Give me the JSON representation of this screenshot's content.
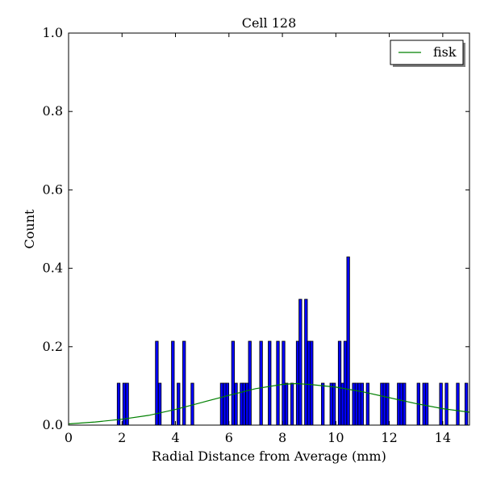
{
  "chart_data": {
    "type": "bar",
    "title": "Cell 128",
    "xlabel": "Radial Distance from Average (mm)",
    "ylabel": "Count",
    "xlim": [
      0,
      15
    ],
    "ylim": [
      0,
      1.0
    ],
    "xticks": [
      0,
      2,
      4,
      6,
      8,
      10,
      12,
      14
    ],
    "yticks": [
      0.0,
      0.2,
      0.4,
      0.6,
      0.8,
      1.0
    ],
    "grid": false,
    "legend_position": "top-right",
    "bin_width": 0.105,
    "bar_color": "#0000ff",
    "bar_edge_color": "#000000",
    "histogram": {
      "bin_left_edges": [
        1.82,
        2.03,
        2.14,
        3.25,
        3.36,
        3.85,
        4.06,
        4.27,
        4.58,
        5.68,
        5.79,
        5.89,
        6.1,
        6.21,
        6.42,
        6.52,
        6.63,
        6.73,
        7.15,
        7.47,
        7.78,
        7.99,
        8.1,
        8.31,
        8.52,
        8.62,
        8.83,
        8.94,
        9.04,
        9.46,
        9.78,
        9.88,
        10.09,
        10.2,
        10.3,
        10.41,
        10.62,
        10.72,
        10.83,
        10.93,
        11.14,
        11.67,
        11.77,
        11.88,
        12.3,
        12.4,
        12.51,
        13.04,
        13.25,
        13.35,
        13.88,
        14.09,
        14.51,
        14.83
      ],
      "heights": [
        0.107,
        0.107,
        0.107,
        0.214,
        0.107,
        0.214,
        0.107,
        0.214,
        0.107,
        0.107,
        0.107,
        0.107,
        0.214,
        0.107,
        0.107,
        0.107,
        0.107,
        0.214,
        0.214,
        0.214,
        0.214,
        0.214,
        0.107,
        0.107,
        0.214,
        0.321,
        0.321,
        0.214,
        0.214,
        0.107,
        0.107,
        0.107,
        0.214,
        0.107,
        0.214,
        0.429,
        0.107,
        0.107,
        0.107,
        0.107,
        0.107,
        0.107,
        0.107,
        0.107,
        0.107,
        0.107,
        0.107,
        0.107,
        0.107,
        0.107,
        0.107,
        0.107,
        0.107,
        0.107
      ]
    },
    "series": [
      {
        "name": "fisk",
        "type": "line",
        "color": "#008000",
        "x": [
          0,
          1,
          2,
          3,
          4,
          5,
          6,
          7,
          8,
          8.5,
          9,
          10,
          11,
          12,
          13,
          14,
          15
        ],
        "y": [
          0.003,
          0.008,
          0.015,
          0.025,
          0.04,
          0.058,
          0.076,
          0.093,
          0.104,
          0.106,
          0.104,
          0.097,
          0.085,
          0.07,
          0.055,
          0.042,
          0.033
        ]
      }
    ]
  }
}
